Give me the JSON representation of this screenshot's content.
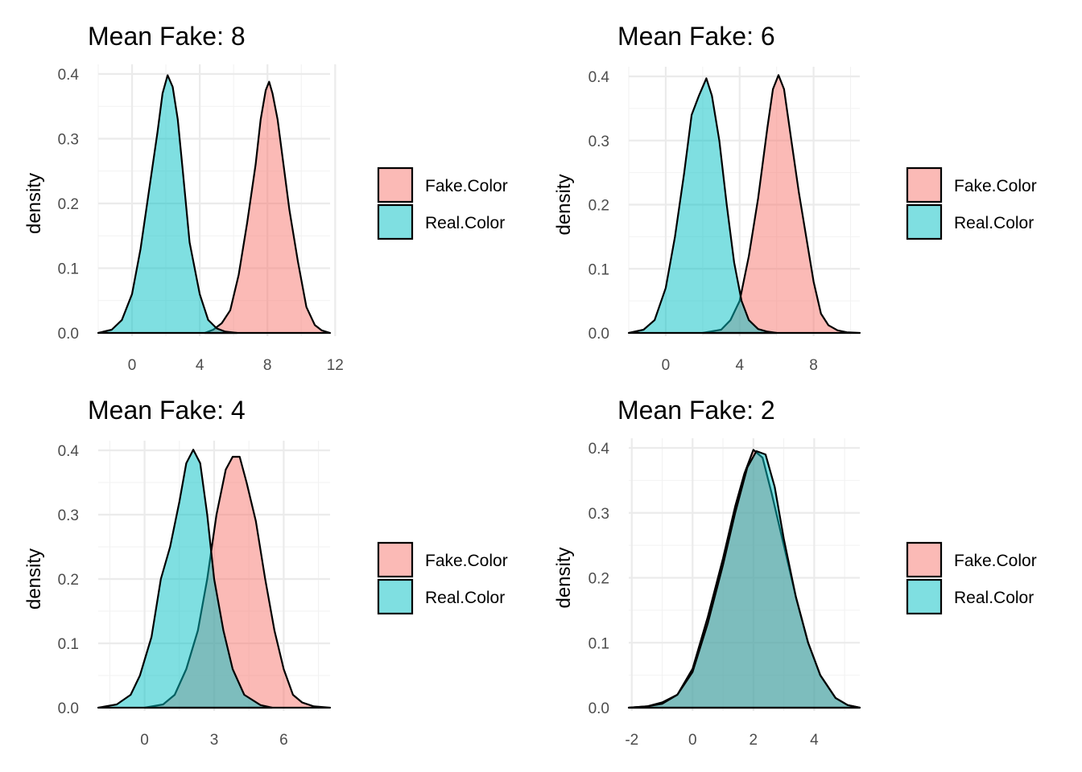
{
  "colors": {
    "fake": "#F8766D",
    "real": "#00BFC4",
    "fill_opacity": 0.5
  },
  "chart_data": [
    {
      "type": "area",
      "title": "Mean Fake: 8",
      "xlabel": "",
      "ylabel": "density",
      "xlim": [
        -2.0,
        11.7
      ],
      "ylim": [
        0,
        0.4
      ],
      "xticks": [
        0,
        4,
        8,
        12
      ],
      "xtick_labels": [
        "0",
        "4",
        "8",
        "12"
      ],
      "yticks": [
        0,
        0.1,
        0.2,
        0.3,
        0.4
      ],
      "ytick_labels": [
        "0.0",
        "0.1",
        "0.2",
        "0.3",
        "0.4"
      ],
      "grid": true,
      "legend_position": "right",
      "series": [
        {
          "name": "Fake.Color",
          "color": "#F8766D",
          "x": [
            4.3,
            4.8,
            5.3,
            5.8,
            6.3,
            6.8,
            7.3,
            7.6,
            7.9,
            8.1,
            8.3,
            8.6,
            8.9,
            9.3,
            9.8,
            10.3,
            10.8,
            11.2,
            11.7
          ],
          "y": [
            0.0,
            0.005,
            0.015,
            0.035,
            0.09,
            0.17,
            0.26,
            0.33,
            0.375,
            0.388,
            0.37,
            0.33,
            0.27,
            0.19,
            0.11,
            0.04,
            0.012,
            0.004,
            0.0
          ]
        },
        {
          "name": "Real.Color",
          "color": "#00BFC4",
          "x": [
            -2.0,
            -1.2,
            -0.6,
            0.0,
            0.5,
            1.0,
            1.5,
            1.8,
            2.1,
            2.4,
            2.7,
            3.0,
            3.4,
            4.0,
            4.5,
            5.0,
            5.5,
            6.2
          ],
          "y": [
            0.0,
            0.005,
            0.02,
            0.06,
            0.13,
            0.22,
            0.31,
            0.37,
            0.398,
            0.38,
            0.33,
            0.25,
            0.14,
            0.06,
            0.02,
            0.007,
            0.002,
            0.0
          ]
        }
      ]
    },
    {
      "type": "area",
      "title": "Mean Fake: 6",
      "xlabel": "",
      "ylabel": "density",
      "xlim": [
        -2.0,
        10.5
      ],
      "ylim": [
        0,
        0.4
      ],
      "xticks": [
        0,
        4,
        8
      ],
      "xtick_labels": [
        "0",
        "4",
        "8"
      ],
      "yticks": [
        0,
        0.1,
        0.2,
        0.3,
        0.4
      ],
      "ytick_labels": [
        "0.0",
        "0.1",
        "0.2",
        "0.3",
        "0.4"
      ],
      "grid": true,
      "legend_position": "right",
      "series": [
        {
          "name": "Fake.Color",
          "color": "#F8766D",
          "x": [
            2.0,
            3.0,
            3.5,
            4.0,
            4.5,
            5.0,
            5.5,
            5.8,
            6.1,
            6.4,
            6.8,
            7.2,
            7.6,
            8.0,
            8.4,
            8.8,
            9.3,
            9.8,
            10.5
          ],
          "y": [
            0.0,
            0.005,
            0.02,
            0.05,
            0.12,
            0.21,
            0.32,
            0.38,
            0.402,
            0.38,
            0.3,
            0.22,
            0.15,
            0.08,
            0.03,
            0.012,
            0.004,
            0.001,
            0.0
          ]
        },
        {
          "name": "Real.Color",
          "color": "#00BFC4",
          "x": [
            -2.0,
            -1.2,
            -0.6,
            0.0,
            0.5,
            1.0,
            1.4,
            1.8,
            2.2,
            2.5,
            2.9,
            3.3,
            3.7,
            4.1,
            4.5,
            5.0,
            5.5,
            6.0
          ],
          "y": [
            0.0,
            0.005,
            0.02,
            0.07,
            0.15,
            0.25,
            0.34,
            0.37,
            0.397,
            0.37,
            0.3,
            0.2,
            0.11,
            0.05,
            0.02,
            0.006,
            0.002,
            0.0
          ]
        }
      ]
    },
    {
      "type": "area",
      "title": "Mean Fake: 4",
      "xlabel": "",
      "ylabel": "density",
      "xlim": [
        -2.0,
        8.0
      ],
      "ylim": [
        0,
        0.4
      ],
      "xticks": [
        0,
        3,
        6
      ],
      "xtick_labels": [
        "0",
        "3",
        "6"
      ],
      "yticks": [
        0,
        0.1,
        0.2,
        0.3,
        0.4
      ],
      "ytick_labels": [
        "0.0",
        "0.1",
        "0.2",
        "0.3",
        "0.4"
      ],
      "grid": true,
      "legend_position": "right",
      "series": [
        {
          "name": "Fake.Color",
          "color": "#F8766D",
          "x": [
            0.0,
            0.8,
            1.3,
            1.8,
            2.3,
            2.7,
            3.1,
            3.5,
            3.8,
            4.1,
            4.4,
            4.8,
            5.2,
            5.6,
            6.0,
            6.4,
            6.8,
            7.3,
            8.0
          ],
          "y": [
            0.0,
            0.005,
            0.02,
            0.06,
            0.12,
            0.2,
            0.3,
            0.37,
            0.39,
            0.39,
            0.35,
            0.29,
            0.2,
            0.12,
            0.06,
            0.02,
            0.008,
            0.002,
            0.0
          ]
        },
        {
          "name": "Real.Color",
          "color": "#00BFC4",
          "x": [
            -2.0,
            -1.2,
            -0.6,
            -0.2,
            0.3,
            0.7,
            1.1,
            1.5,
            1.8,
            2.1,
            2.4,
            2.7,
            3.0,
            3.4,
            3.8,
            4.3,
            5.0,
            5.5
          ],
          "y": [
            0.0,
            0.005,
            0.02,
            0.05,
            0.11,
            0.2,
            0.25,
            0.32,
            0.38,
            0.401,
            0.38,
            0.3,
            0.2,
            0.12,
            0.06,
            0.02,
            0.004,
            0.0
          ]
        }
      ]
    },
    {
      "type": "area",
      "title": "Mean Fake: 2",
      "xlabel": "",
      "ylabel": "density",
      "xlim": [
        -2.1,
        5.5
      ],
      "ylim": [
        0,
        0.4
      ],
      "xticks": [
        -2,
        0,
        2,
        4
      ],
      "xtick_labels": [
        "-2",
        "0",
        "2",
        "4"
      ],
      "yticks": [
        0,
        0.1,
        0.2,
        0.3,
        0.4
      ],
      "ytick_labels": [
        "0.0",
        "0.1",
        "0.2",
        "0.3",
        "0.4"
      ],
      "grid": true,
      "legend_position": "right",
      "series": [
        {
          "name": "Fake.Color",
          "color": "#F8766D",
          "x": [
            -2.1,
            -1.5,
            -1.0,
            -0.5,
            0.0,
            0.5,
            1.0,
            1.4,
            1.7,
            2.0,
            2.3,
            2.6,
            3.0,
            3.4,
            3.8,
            4.2,
            4.7,
            5.1,
            5.5
          ],
          "y": [
            0.0,
            0.002,
            0.008,
            0.02,
            0.06,
            0.14,
            0.23,
            0.31,
            0.36,
            0.397,
            0.385,
            0.33,
            0.25,
            0.17,
            0.1,
            0.05,
            0.015,
            0.004,
            0.0
          ]
        },
        {
          "name": "Real.Color",
          "color": "#00BFC4",
          "x": [
            -2.1,
            -1.5,
            -1.0,
            -0.5,
            0.0,
            0.5,
            1.0,
            1.4,
            1.8,
            2.1,
            2.4,
            2.7,
            3.0,
            3.4,
            3.8,
            4.2,
            4.7,
            5.1,
            5.5
          ],
          "y": [
            0.0,
            0.002,
            0.006,
            0.02,
            0.055,
            0.13,
            0.22,
            0.3,
            0.37,
            0.395,
            0.39,
            0.34,
            0.26,
            0.17,
            0.1,
            0.05,
            0.015,
            0.004,
            0.0
          ]
        }
      ]
    }
  ]
}
